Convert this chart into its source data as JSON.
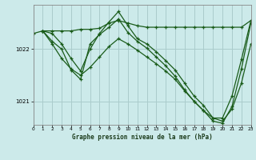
{
  "title": "Graphe pression niveau de la mer (hPa)",
  "bg_color": "#cceaea",
  "grid_color": "#aacccc",
  "line_color": "#1a5c1a",
  "xlim": [
    0,
    23
  ],
  "ylim": [
    1020.55,
    1022.85
  ],
  "yticks": [
    1021,
    1022
  ],
  "xticks": [
    0,
    1,
    2,
    3,
    4,
    5,
    6,
    7,
    8,
    9,
    10,
    11,
    12,
    13,
    14,
    15,
    16,
    17,
    18,
    19,
    20,
    21,
    22,
    23
  ],
  "line1_x": [
    0,
    1,
    2,
    3,
    4,
    5,
    6,
    7,
    8,
    9,
    10,
    11,
    12,
    13,
    14,
    15,
    16,
    17,
    18,
    19,
    20,
    21,
    22,
    23
  ],
  "line1_y": [
    1022.3,
    1022.35,
    1022.35,
    1022.35,
    1022.35,
    1022.38,
    1022.38,
    1022.4,
    1022.5,
    1022.55,
    1022.5,
    1022.45,
    1022.42,
    1022.42,
    1022.42,
    1022.42,
    1022.42,
    1022.42,
    1022.42,
    1022.42,
    1022.42,
    1022.42,
    1022.42,
    1022.55
  ],
  "line2_x": [
    1,
    2,
    3,
    4,
    5,
    6,
    7,
    8,
    9,
    10,
    11,
    12,
    13,
    14,
    15,
    16,
    17,
    18,
    19,
    20,
    21,
    22,
    23
  ],
  "line2_y": [
    1022.35,
    1022.3,
    1022.1,
    1021.82,
    1021.58,
    1022.0,
    1022.3,
    1022.52,
    1022.72,
    1022.45,
    1022.2,
    1022.1,
    1021.95,
    1021.78,
    1021.6,
    1021.35,
    1021.1,
    1020.92,
    1020.68,
    1020.68,
    1021.1,
    1021.8,
    1022.55
  ],
  "line3_x": [
    1,
    2,
    3,
    4,
    5,
    6,
    7,
    8,
    9,
    10,
    11,
    12,
    13,
    14,
    15,
    16,
    17,
    18,
    19,
    20,
    21,
    22,
    23
  ],
  "line3_y": [
    1022.35,
    1022.1,
    1021.82,
    1021.62,
    1021.5,
    1021.65,
    1021.85,
    1022.05,
    1022.2,
    1022.1,
    1021.98,
    1021.85,
    1021.72,
    1021.58,
    1021.42,
    1021.2,
    1021.0,
    1020.82,
    1020.68,
    1020.62,
    1020.85,
    1021.35,
    1022.1
  ],
  "line4_x": [
    1,
    2,
    3,
    4,
    5,
    6,
    7,
    8,
    9,
    10,
    11,
    12,
    13,
    14,
    15,
    16,
    17,
    18,
    19,
    20,
    21,
    22,
    23
  ],
  "line4_y": [
    1022.35,
    1022.15,
    1022.0,
    1021.6,
    1021.42,
    1022.1,
    1022.28,
    1022.42,
    1022.58,
    1022.32,
    1022.15,
    1022.02,
    1021.85,
    1021.68,
    1021.48,
    1021.22,
    1021.0,
    1020.82,
    1020.62,
    1020.58,
    1020.9,
    1021.62,
    1022.5
  ]
}
